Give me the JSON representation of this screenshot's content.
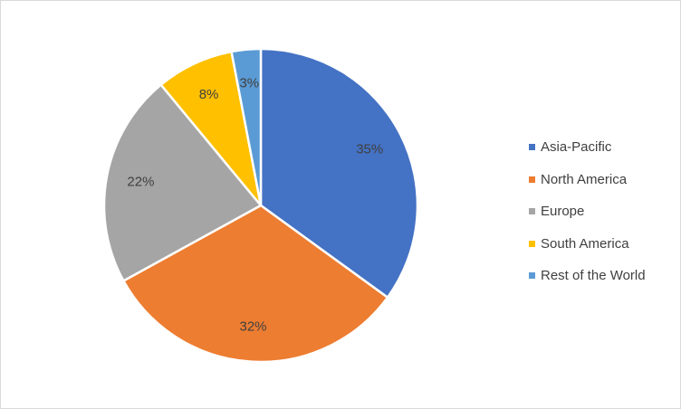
{
  "chart_data": {
    "type": "pie",
    "categories": [
      "Asia-Pacific",
      "North America",
      "Europe",
      "South America",
      "Rest of the World"
    ],
    "values": [
      35,
      32,
      22,
      8,
      3
    ],
    "data_labels": [
      "35%",
      "32%",
      "22%",
      "8%",
      "3%"
    ],
    "colors": [
      "#4472C4",
      "#ED7D31",
      "#A5A5A5",
      "#FFC000",
      "#5B9BD5"
    ],
    "start_angle": "12 o'clock",
    "direction": "clockwise",
    "legend": {
      "position": "right",
      "entries": [
        "Asia-Pacific",
        "North America",
        "Europe",
        "South America",
        "Rest of the World"
      ]
    }
  }
}
